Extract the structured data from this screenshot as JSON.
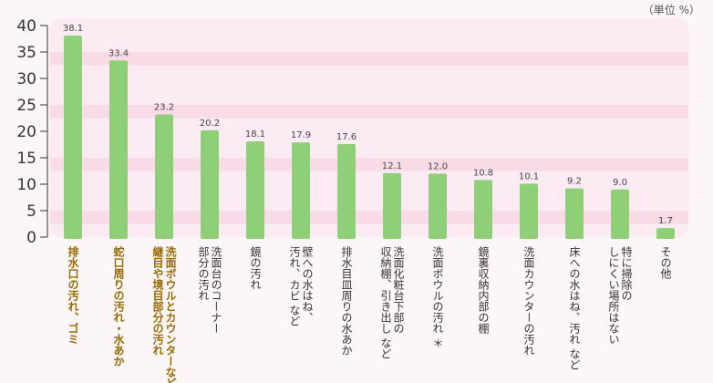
{
  "unit_label": "（単位 %）",
  "chart_data": {
    "type": "bar",
    "ylim": [
      0,
      40
    ],
    "yticks": [
      0,
      5,
      10,
      15,
      20,
      25,
      30,
      35,
      40
    ],
    "bar_color": "#8fcf78",
    "highlight_color": "#9a6a00",
    "plot_stripe_colors": [
      "#f9dbe8",
      "#fcebf2"
    ],
    "categories": [
      {
        "label": [
          "排水口の汚れ、ゴミ"
        ],
        "value": 38.1,
        "value_label": "38.1",
        "highlight": true
      },
      {
        "label": [
          "蛇口周りの汚れ・水あか"
        ],
        "value": 33.4,
        "value_label": "33.4",
        "highlight": true
      },
      {
        "label": [
          "洗面ボウルとカウンターなど",
          "継目や境目部分の汚れ"
        ],
        "value": 23.2,
        "value_label": "23.2",
        "highlight": true
      },
      {
        "label": [
          "洗面台のコーナー",
          "部分の汚れ"
        ],
        "value": 20.2,
        "value_label": "20.2",
        "highlight": false
      },
      {
        "label": [
          "鏡の汚れ"
        ],
        "value": 18.1,
        "value_label": "18.1",
        "highlight": false
      },
      {
        "label": [
          "壁への水はね、",
          "汚れ、カビ など"
        ],
        "value": 17.9,
        "value_label": "17.9",
        "highlight": false
      },
      {
        "label": [
          "排水目皿周りの水あか"
        ],
        "value": 17.6,
        "value_label": "17.6",
        "highlight": false
      },
      {
        "label": [
          "洗面化粧台下部の",
          "収納棚、引き出し など"
        ],
        "value": 12.1,
        "value_label": "12.1",
        "highlight": false
      },
      {
        "label": [
          "洗面ボウルの汚れ ＊"
        ],
        "value": 12.0,
        "value_label": "12.0",
        "highlight": false
      },
      {
        "label": [
          "鏡裏収納内部の棚"
        ],
        "value": 10.8,
        "value_label": "10.8",
        "highlight": false
      },
      {
        "label": [
          "洗面カウンターの汚れ"
        ],
        "value": 10.1,
        "value_label": "10.1",
        "highlight": false
      },
      {
        "label": [
          "床への水はね、汚れ など"
        ],
        "value": 9.2,
        "value_label": "9.2",
        "highlight": false
      },
      {
        "label": [
          "特に掃除の",
          "しにくい場所はない"
        ],
        "value": 9.0,
        "value_label": "9.0",
        "highlight": false
      },
      {
        "label": [
          "その他"
        ],
        "value": 1.7,
        "value_label": "1.7",
        "highlight": false
      }
    ]
  }
}
